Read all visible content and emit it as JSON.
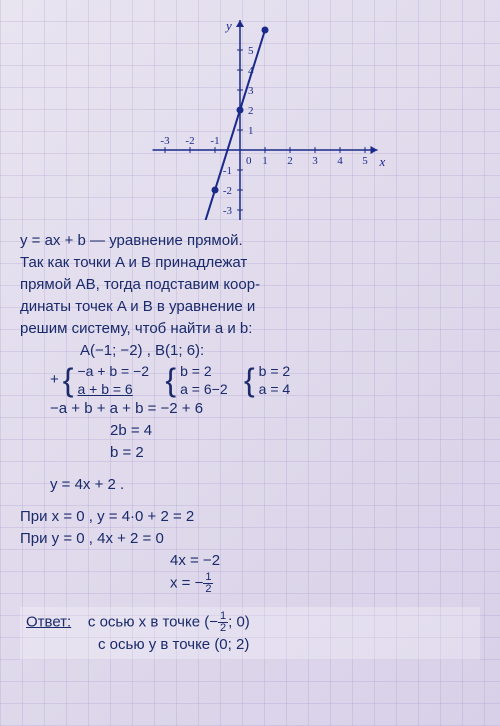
{
  "graph": {
    "type": "line",
    "xlim": [
      -3.5,
      5.5
    ],
    "ylim": [
      -3.5,
      6.5
    ],
    "xtick_labels": [
      "-3",
      "-2",
      "-1",
      "1",
      "2",
      "3",
      "4",
      "5"
    ],
    "xtick_pos": [
      -3,
      -2,
      -1,
      1,
      2,
      3,
      4,
      5
    ],
    "ytick_labels": [
      "5",
      "4",
      "3",
      "2",
      "1",
      "-1",
      "-2",
      "-3"
    ],
    "ytick_pos": [
      5,
      4,
      3,
      2,
      1,
      -1,
      -2,
      -3
    ],
    "origin_label": "0",
    "x_axis_label": "x",
    "y_axis_label": "y",
    "axis_color": "#1a2a8a",
    "line_color": "#1a2a8a",
    "point_color": "#1a2a8a",
    "tick_fontsize": 11,
    "label_fontsize": 13,
    "line_points": [
      [
        -2.0,
        -6
      ],
      [
        1.0,
        6
      ]
    ],
    "marked_points": [
      [
        -1,
        -2
      ],
      [
        0,
        2
      ],
      [
        1,
        6
      ]
    ]
  },
  "text": {
    "eq_line": "y = ax + b — уравнение прямой.",
    "explain1": "Так как точки A и B принадлежат",
    "explain2": "прямой AB, тогда подставим коор-",
    "explain3": "динаты точек A и B в уравнение и",
    "explain4": "решим систему, чтоб найти a и b:",
    "pts": "A(−1; −2) ,  B(1; 6):",
    "sys1a": "−a + b = −2",
    "sys1b": "a + b = 6",
    "sys2a": "b = 2",
    "sys2b": "a = 6−2",
    "sys3a": "b = 2",
    "sys3b": "a = 4",
    "add1": "−a + b + a + b = −2 + 6",
    "add2": "2b = 4",
    "add3": "b = 2",
    "result_eq": "y = 4x + 2 .",
    "when_x0": "При  x = 0 ,  y = 4·0 + 2 = 2",
    "when_y0_1": "При  y = 0 ,  4x + 2 = 0",
    "when_y0_2": "4x = −2",
    "when_y0_3_prefix": "x = −",
    "frac_n": "1",
    "frac_d": "2",
    "answer_label": "Ответ:",
    "answer1_prefix": "с осью x в точке (−",
    "answer1_suffix": "; 0)",
    "answer2": "с осью y в точке (0; 2)"
  }
}
